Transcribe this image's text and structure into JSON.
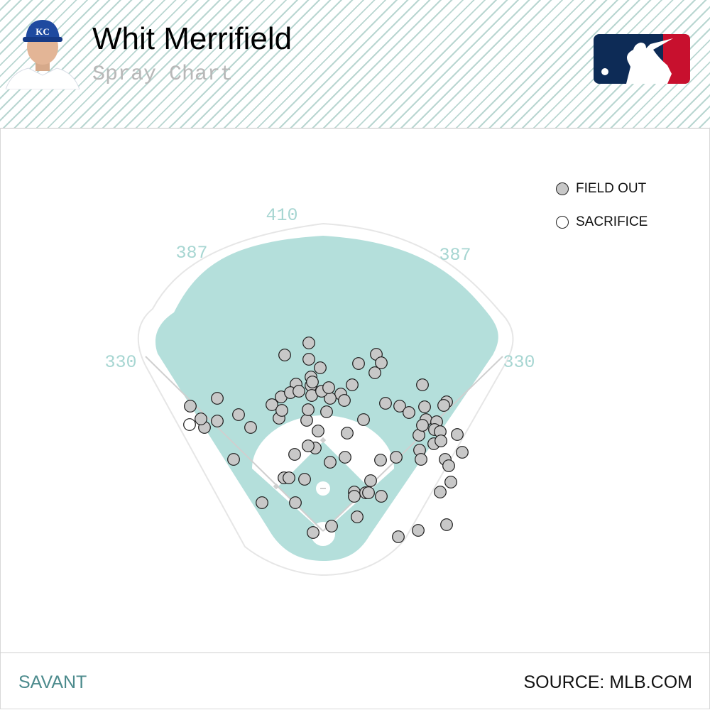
{
  "header": {
    "player_name": "Whit Merrifield",
    "subtitle": "Spray Chart",
    "cap_logo_text": "KC"
  },
  "legend": [
    {
      "label": "FIELD OUT",
      "color": "#c8c8c8"
    },
    {
      "label": "SACRIFICE",
      "color": "#ffffff"
    }
  ],
  "footer": {
    "left": "SAVANT",
    "right": "SOURCE: MLB.COM"
  },
  "colors": {
    "field": "#b4dfdb",
    "infield_dirt": "#ffffff",
    "stripe": "#b9d6d1",
    "footer_accent": "#4b8a8c",
    "mlb_blue": "#0d2b56",
    "mlb_red": "#c8102e"
  },
  "chart_data": {
    "type": "scatter",
    "field_distances": {
      "left_line": "330",
      "left_center": "387",
      "center": "410",
      "right_center": "387",
      "right_line": "330"
    },
    "series": [
      {
        "name": "FIELD OUT",
        "points": [
          [
            -20,
            -132
          ],
          [
            75,
            -116
          ],
          [
            50,
            -103
          ],
          [
            82,
            -104
          ],
          [
            -54,
            -115
          ],
          [
            -20,
            -109
          ],
          [
            -4,
            -97
          ],
          [
            73,
            -90
          ],
          [
            -17,
            -84
          ],
          [
            -17,
            -72
          ],
          [
            41,
            -73
          ],
          [
            25,
            -60
          ],
          [
            88,
            -47
          ],
          [
            -38,
            -74
          ],
          [
            140,
            -73
          ],
          [
            -59,
            -56
          ],
          [
            -62,
            -26
          ],
          [
            -72,
            -45
          ],
          [
            -102,
            -13
          ],
          [
            -119,
            -31
          ],
          [
            -149,
            -22
          ],
          [
            -126,
            32
          ],
          [
            -167,
            -13
          ],
          [
            -172,
            -25
          ],
          [
            -149,
            -54
          ],
          [
            -187,
            -43
          ],
          [
            10,
            -54
          ],
          [
            30,
            -51
          ],
          [
            5,
            -35
          ],
          [
            -23,
            -23
          ],
          [
            -21,
            -38
          ],
          [
            -7,
            -8
          ],
          [
            -11,
            16
          ],
          [
            34,
            -5
          ],
          [
            -58,
            -37
          ],
          [
            -16,
            -58
          ],
          [
            -55,
            58
          ],
          [
            81,
            33
          ],
          [
            10,
            36
          ],
          [
            103,
            29
          ],
          [
            136,
            19
          ],
          [
            108,
            -43
          ],
          [
            121,
            -34
          ],
          [
            143,
            -42
          ],
          [
            145,
            -24
          ],
          [
            135,
            -2
          ],
          [
            160,
            -21
          ],
          [
            157,
            -10
          ],
          [
            165,
            -7
          ],
          [
            174,
            -49
          ],
          [
            156,
            10
          ],
          [
            138,
            32
          ],
          [
            166,
            6
          ],
          [
            189,
            -3
          ],
          [
            196,
            22
          ],
          [
            172,
            32
          ],
          [
            177,
            41
          ],
          [
            180,
            64
          ],
          [
            165,
            78
          ],
          [
            170,
            -44
          ],
          [
            140,
            -16
          ],
          [
            31,
            29
          ],
          [
            44,
            78
          ],
          [
            60,
            79
          ],
          [
            -21,
            13
          ],
          [
            -40,
            25
          ],
          [
            -86,
            93
          ],
          [
            -26,
            60
          ],
          [
            82,
            84
          ],
          [
            44,
            84
          ],
          [
            12,
            126
          ],
          [
            48,
            113
          ],
          [
            134,
            132
          ],
          [
            -14,
            135
          ],
          [
            67,
            62
          ],
          [
            -48,
            58
          ],
          [
            -15,
            -77
          ],
          [
            -46,
            -62
          ],
          [
            -2,
            -64
          ],
          [
            -34,
            -64
          ],
          [
            106,
            141
          ],
          [
            64,
            79
          ],
          [
            -39,
            93
          ],
          [
            174,
            124
          ],
          [
            8,
            -69
          ],
          [
            57,
            -24
          ]
        ]
      },
      {
        "name": "SACRIFICE",
        "points": [
          [
            -188,
            -17
          ]
        ]
      }
    ]
  }
}
